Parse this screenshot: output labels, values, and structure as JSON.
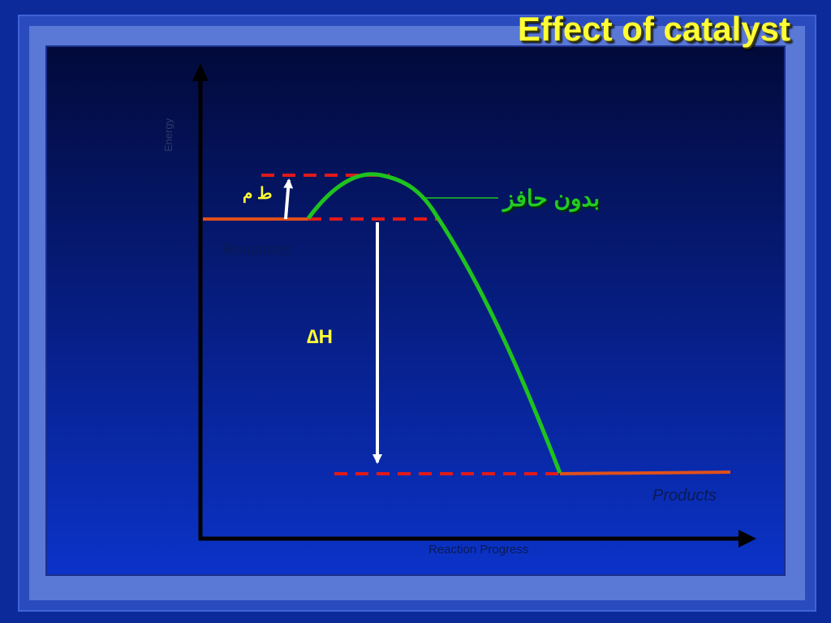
{
  "slide": {
    "title": "Effect of catalyst"
  },
  "diagram": {
    "y_axis_label": "Energy",
    "x_axis_label": "Reaction Progress",
    "reactants_label": "Reactants",
    "products_label": "Products",
    "delta_h_label": "∆H",
    "activation_energy_label": "ط م",
    "curve_label": "بدون حافز",
    "colors": {
      "curve": "#1fc21f",
      "energy_levels": "#e0501a",
      "dashed_guides": "#e01a1a",
      "arrows": "#ffffff",
      "axes": "#000000",
      "label_accent": "#ffff33"
    }
  }
}
